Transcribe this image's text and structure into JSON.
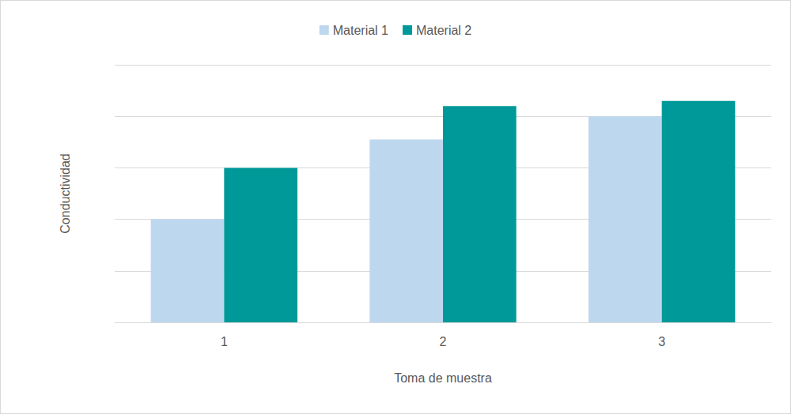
{
  "chart_data": {
    "type": "bar",
    "x_label": "Toma de muestra",
    "y_label": "Conductividad",
    "categories": [
      "1",
      "2",
      "3"
    ],
    "series": [
      {
        "name": "Material 1",
        "color": "#bdd7ee",
        "values": [
          2.0,
          3.55,
          4.0
        ]
      },
      {
        "name": "Material 2",
        "color": "#009999",
        "values": [
          3.0,
          4.2,
          4.3
        ]
      }
    ],
    "ylim": [
      0,
      5
    ],
    "yticks": [
      0,
      1,
      2,
      3,
      4,
      5
    ],
    "grid": true,
    "legend": "top",
    "tick_labels": "x"
  }
}
